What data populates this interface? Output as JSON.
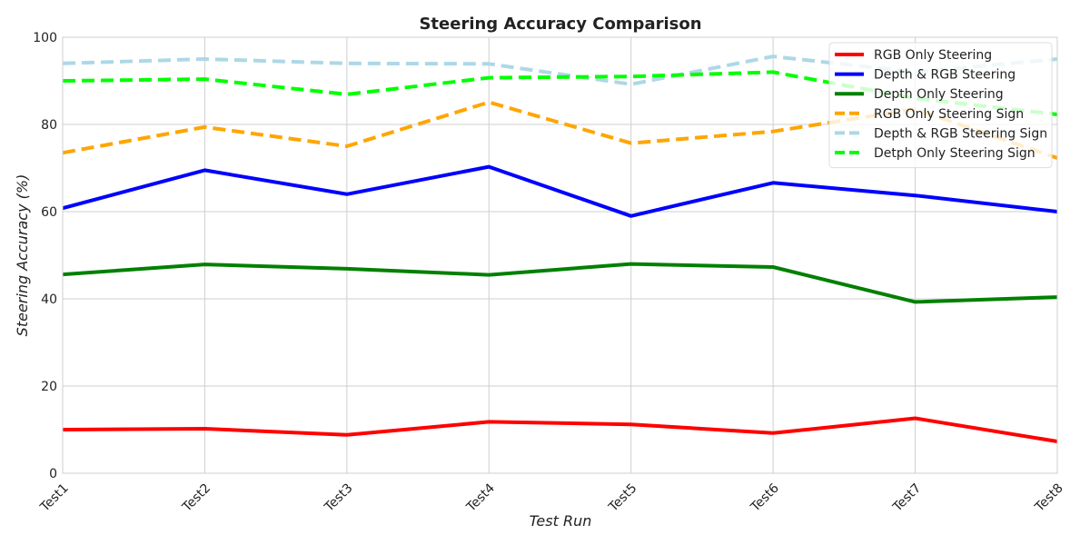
{
  "chart_data": {
    "type": "line",
    "title": "Steering Accuracy Comparison",
    "xlabel": "Test Run",
    "ylabel": "Steering Accuracy (%)",
    "categories": [
      "Test1",
      "Test2",
      "Test3",
      "Test4",
      "Test5",
      "Test6",
      "Test7",
      "Test8"
    ],
    "ylim": [
      0,
      100
    ],
    "yticks": [
      0,
      20,
      40,
      60,
      80,
      100
    ],
    "grid": true,
    "legend_position": "top-right",
    "series": [
      {
        "name": "RGB Only Steering",
        "color": "#ff0000",
        "style": "solid",
        "values": [
          10.0,
          10.2,
          8.8,
          11.8,
          11.2,
          9.2,
          12.6,
          7.3
        ]
      },
      {
        "name": "Depth & RGB Steering",
        "color": "#0000ff",
        "style": "solid",
        "values": [
          60.8,
          69.5,
          64.0,
          70.3,
          59.0,
          66.6,
          63.7,
          60.0
        ]
      },
      {
        "name": "Depth Only Steering",
        "color": "#008000",
        "style": "solid",
        "values": [
          45.6,
          47.9,
          46.9,
          45.5,
          48.0,
          47.3,
          39.3,
          40.4
        ]
      },
      {
        "name": "RGB Only Steering Sign",
        "color": "#ffa500",
        "style": "dashed",
        "values": [
          73.5,
          79.4,
          75.0,
          85.1,
          75.7,
          78.4,
          83.5,
          72.3
        ]
      },
      {
        "name": "Depth & RGB Steering Sign",
        "color": "#add8e6",
        "style": "dashed",
        "values": [
          94.0,
          95.0,
          94.0,
          93.9,
          89.2,
          95.6,
          92.0,
          95.0
        ]
      },
      {
        "name": "Detph Only Steering Sign",
        "color": "#00ff00",
        "style": "dashed",
        "values": [
          90.0,
          90.4,
          86.9,
          90.7,
          91.0,
          92.0,
          86.0,
          82.3
        ]
      }
    ]
  }
}
